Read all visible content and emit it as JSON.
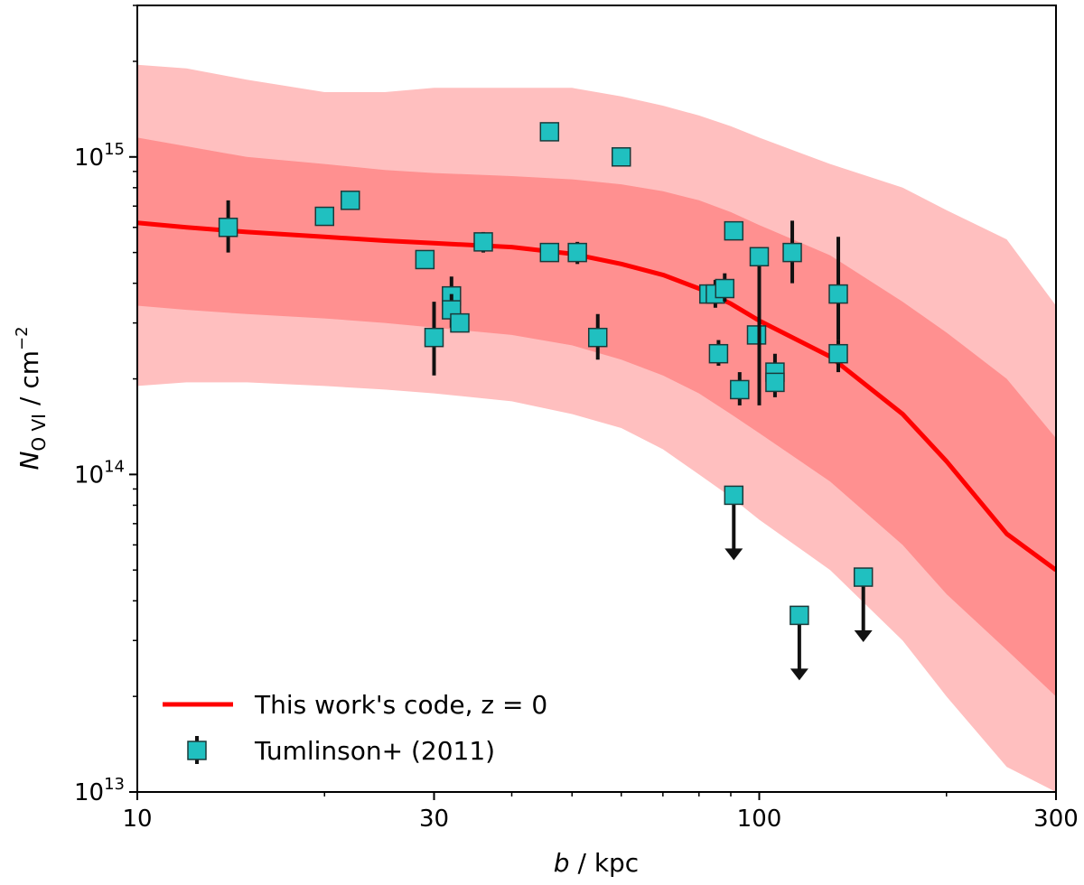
{
  "chart_data": {
    "type": "scatter",
    "x_scale": "log",
    "y_scale": "log",
    "xlim": [
      10,
      300
    ],
    "ylim": [
      10000000000000.0,
      3000000000000000.0
    ],
    "xlabel": {
      "main": "b",
      "unit": "kpc"
    },
    "ylabel": {
      "main": "N",
      "sub": "O VI",
      "unit": "cm",
      "unit_exp": "−2"
    },
    "x_ticks": [
      {
        "value": 10,
        "label": "10"
      },
      {
        "value": 30,
        "label": "30"
      },
      {
        "value": 100,
        "label": "100"
      },
      {
        "value": 300,
        "label": "300"
      }
    ],
    "y_ticks": [
      {
        "value": 10000000000000.0,
        "base": "10",
        "exp": "13"
      },
      {
        "value": 100000000000000.0,
        "base": "10",
        "exp": "14"
      },
      {
        "value": 1000000000000000.0,
        "base": "10",
        "exp": "15"
      }
    ],
    "grid": false,
    "legend_position": "lower-left",
    "colors": {
      "model_line": "#ff0000",
      "band_1sigma": "#ff9090",
      "band_2sigma": "#ffbfbf",
      "points": "#20c0c0",
      "errorbar": "#111111"
    },
    "model": {
      "name": "This work's code, z = 0",
      "b": [
        10,
        12,
        15,
        20,
        25,
        30,
        40,
        50,
        60,
        70,
        80,
        90,
        100,
        130,
        170,
        200,
        250,
        300
      ],
      "median": [
        620000000000000.0,
        600000000000000.0,
        580000000000000.0,
        560000000000000.0,
        545000000000000.0,
        535000000000000.0,
        520000000000000.0,
        495000000000000.0,
        460000000000000.0,
        425000000000000.0,
        385000000000000.0,
        345000000000000.0,
        305000000000000.0,
        235000000000000.0,
        155000000000000.0,
        110000000000000.0,
        65000000000000.0,
        50000000000000.0
      ],
      "band_1sigma_upper": [
        1150000000000000.0,
        1080000000000000.0,
        1000000000000000.0,
        950000000000000.0,
        910000000000000.0,
        890000000000000.0,
        870000000000000.0,
        850000000000000.0,
        820000000000000.0,
        780000000000000.0,
        730000000000000.0,
        670000000000000.0,
        610000000000000.0,
        490000000000000.0,
        350000000000000.0,
        280000000000000.0,
        200000000000000.0,
        130000000000000.0
      ],
      "band_1sigma_lower": [
        340000000000000.0,
        330000000000000.0,
        320000000000000.0,
        310000000000000.0,
        300000000000000.0,
        290000000000000.0,
        275000000000000.0,
        255000000000000.0,
        230000000000000.0,
        205000000000000.0,
        180000000000000.0,
        155000000000000.0,
        135000000000000.0,
        95000000000000.0,
        60000000000000.0,
        42000000000000.0,
        28000000000000.0,
        20000000000000.0
      ],
      "band_2sigma_upper": [
        1950000000000000.0,
        1900000000000000.0,
        1750000000000000.0,
        1600000000000000.0,
        1600000000000000.0,
        1650000000000000.0,
        1650000000000000.0,
        1650000000000000.0,
        1550000000000000.0,
        1450000000000000.0,
        1350000000000000.0,
        1250000000000000.0,
        1150000000000000.0,
        950000000000000.0,
        800000000000000.0,
        680000000000000.0,
        550000000000000.0,
        340000000000000.0
      ],
      "band_2sigma_lower": [
        190000000000000.0,
        195000000000000.0,
        195000000000000.0,
        190000000000000.0,
        185000000000000.0,
        180000000000000.0,
        170000000000000.0,
        155000000000000.0,
        140000000000000.0,
        120000000000000.0,
        100000000000000.0,
        85000000000000.0,
        72000000000000.0,
        50000000000000.0,
        30000000000000.0,
        20000000000000.0,
        12000000000000.0,
        10000000000000.0
      ]
    },
    "observations": {
      "name": "Tumlinson+ (2011)",
      "points": [
        {
          "x": 14,
          "y": 600000000000000.0,
          "lo": 500000000000000.0,
          "hi": 730000000000000.0
        },
        {
          "x": 20,
          "y": 650000000000000.0
        },
        {
          "x": 22,
          "y": 730000000000000.0
        },
        {
          "x": 29,
          "y": 475000000000000.0
        },
        {
          "x": 30,
          "y": 270000000000000.0,
          "lo": 205000000000000.0,
          "hi": 350000000000000.0
        },
        {
          "x": 32,
          "y": 365000000000000.0,
          "lo": 320000000000000.0,
          "hi": 420000000000000.0
        },
        {
          "x": 32,
          "y": 330000000000000.0,
          "lo": 290000000000000.0,
          "hi": 370000000000000.0
        },
        {
          "x": 33,
          "y": 300000000000000.0
        },
        {
          "x": 36,
          "y": 540000000000000.0,
          "lo": 500000000000000.0,
          "hi": 580000000000000.0
        },
        {
          "x": 46,
          "y": 1200000000000000.0
        },
        {
          "x": 46,
          "y": 500000000000000.0
        },
        {
          "x": 51,
          "y": 500000000000000.0,
          "lo": 460000000000000.0,
          "hi": 540000000000000.0
        },
        {
          "x": 55,
          "y": 270000000000000.0,
          "lo": 230000000000000.0,
          "hi": 320000000000000.0
        },
        {
          "x": 60,
          "y": 1000000000000000.0
        },
        {
          "x": 83,
          "y": 370000000000000.0
        },
        {
          "x": 85,
          "y": 370000000000000.0,
          "lo": 335000000000000.0,
          "hi": 410000000000000.0
        },
        {
          "x": 86,
          "y": 240000000000000.0,
          "lo": 220000000000000.0,
          "hi": 265000000000000.0
        },
        {
          "x": 88,
          "y": 385000000000000.0,
          "lo": 350000000000000.0,
          "hi": 430000000000000.0
        },
        {
          "x": 91,
          "y": 585000000000000.0
        },
        {
          "x": 93,
          "y": 185000000000000.0,
          "lo": 165000000000000.0,
          "hi": 210000000000000.0
        },
        {
          "x": 99,
          "y": 275000000000000.0
        },
        {
          "x": 100,
          "y": 485000000000000.0,
          "lo": 165000000000000.0,
          "hi": 520000000000000.0
        },
        {
          "x": 106,
          "y": 210000000000000.0,
          "lo": 175000000000000.0,
          "hi": 240000000000000.0
        },
        {
          "x": 106,
          "y": 195000000000000.0
        },
        {
          "x": 113,
          "y": 500000000000000.0,
          "lo": 400000000000000.0,
          "hi": 630000000000000.0
        },
        {
          "x": 134,
          "y": 370000000000000.0,
          "lo": 265000000000000.0,
          "hi": 560000000000000.0
        },
        {
          "x": 134,
          "y": 240000000000000.0,
          "lo": 210000000000000.0,
          "hi": 265000000000000.0
        }
      ],
      "upper_limits": [
        {
          "x": 91,
          "y": 86000000000000.0
        },
        {
          "x": 116,
          "y": 36000000000000.0
        },
        {
          "x": 147,
          "y": 47500000000000.0
        }
      ]
    }
  }
}
